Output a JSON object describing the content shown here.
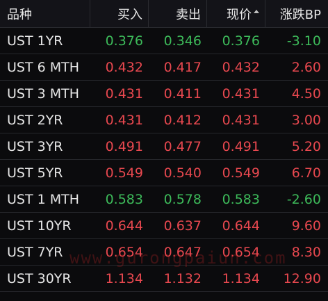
{
  "header": {
    "name": "品种",
    "bid": "买入",
    "ask": "卖出",
    "last": "现价",
    "change": "涨跌BP",
    "sorted_column": "last",
    "sort_icon": "sort-asc-icon"
  },
  "colors": {
    "up": "#e8484f",
    "down": "#3dbb5a",
    "background": "#0b0b0d"
  },
  "rows": [
    {
      "name": "UST 1YR",
      "bid": "0.376",
      "ask": "0.346",
      "last": "0.376",
      "change": "-3.10",
      "trend": "down"
    },
    {
      "name": "UST 6 MTH",
      "bid": "0.432",
      "ask": "0.417",
      "last": "0.432",
      "change": "2.60",
      "trend": "up"
    },
    {
      "name": "UST 3 MTH",
      "bid": "0.431",
      "ask": "0.411",
      "last": "0.431",
      "change": "4.50",
      "trend": "up"
    },
    {
      "name": "UST 2YR",
      "bid": "0.431",
      "ask": "0.412",
      "last": "0.431",
      "change": "3.00",
      "trend": "up"
    },
    {
      "name": "UST 3YR",
      "bid": "0.491",
      "ask": "0.477",
      "last": "0.491",
      "change": "5.20",
      "trend": "up"
    },
    {
      "name": "UST 5YR",
      "bid": "0.549",
      "ask": "0.540",
      "last": "0.549",
      "change": "6.70",
      "trend": "up"
    },
    {
      "name": "UST 1 MTH",
      "bid": "0.583",
      "ask": "0.578",
      "last": "0.583",
      "change": "-2.60",
      "trend": "down"
    },
    {
      "name": "UST 10YR",
      "bid": "0.644",
      "ask": "0.637",
      "last": "0.644",
      "change": "9.60",
      "trend": "up"
    },
    {
      "name": "UST 7YR",
      "bid": "0.654",
      "ask": "0.647",
      "last": "0.654",
      "change": "8.30",
      "trend": "up"
    },
    {
      "name": "UST 30YR",
      "bid": "1.134",
      "ask": "1.132",
      "last": "1.134",
      "change": "12.90",
      "trend": "up"
    }
  ],
  "watermark": "www.gurongpaiun.com"
}
